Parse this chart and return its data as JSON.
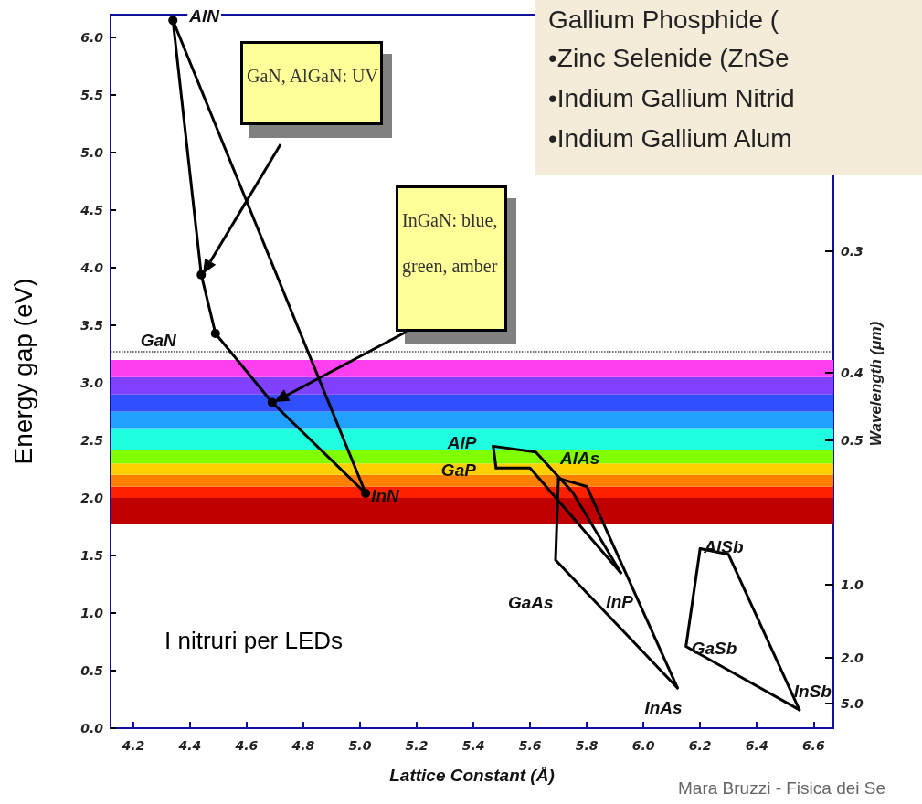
{
  "chart_data": {
    "type": "line",
    "xlabel": "Lattice Constant (Å)",
    "ylabel": "Energy gap (eV)",
    "y2label": "Wavelength (μm)",
    "xlim": [
      4.12,
      6.67
    ],
    "ylim": [
      0,
      6.2
    ],
    "xticks": [
      4.2,
      4.4,
      4.6,
      4.8,
      {
        "value": 5,
        "label": "5.0"
      },
      5.2,
      5.4,
      5.6,
      5.8,
      {
        "value": 6,
        "label": "6.0"
      },
      6.2,
      6.4,
      6.6
    ],
    "yticks": [
      {
        "value": 0,
        "label": "0.0"
      },
      0.5,
      {
        "value": 1,
        "label": "1.0"
      },
      1.5,
      {
        "value": 2,
        "label": "2.0"
      },
      2.5,
      {
        "value": 3,
        "label": "3.0"
      },
      3.5,
      {
        "value": 4,
        "label": "4.0"
      },
      4.5,
      {
        "value": 5,
        "label": "5.0"
      },
      5.5,
      {
        "value": 6,
        "label": "6.0"
      }
    ],
    "series": [
      {
        "color": "#000000",
        "marker": "circle",
        "x": [
          4.34,
          4.44,
          4.49,
          4.69,
          5.02
        ],
        "values": [
          6.15,
          3.94,
          3.43,
          2.83,
          2.04
        ]
      },
      {
        "color": "#000000",
        "marker": "none",
        "x": [
          4.34,
          5.02
        ],
        "values": [
          6.15,
          2.04
        ]
      },
      {
        "color": "#000000",
        "marker": "none",
        "x": [
          5.47,
          5.48
        ],
        "values": [
          2.45,
          2.26
        ]
      },
      {
        "color": "#000000",
        "marker": "none",
        "x": [
          5.47,
          5.62,
          5.75,
          5.92
        ],
        "values": [
          2.45,
          2.4,
          2.05,
          1.35
        ]
      },
      {
        "color": "#000000",
        "marker": "none",
        "x": [
          5.48,
          5.6,
          5.92
        ],
        "values": [
          2.26,
          2.26,
          1.35
        ]
      },
      {
        "color": "#000000",
        "marker": "none",
        "x": [
          5.7,
          5.69,
          6.12
        ],
        "values": [
          2.17,
          1.46,
          0.35
        ]
      },
      {
        "color": "#000000",
        "marker": "none",
        "x": [
          5.7,
          5.8,
          6.12
        ],
        "values": [
          2.17,
          2.1,
          0.35
        ]
      },
      {
        "color": "#000000",
        "marker": "none",
        "x": [
          6.2,
          6.3,
          6.55
        ],
        "values": [
          1.56,
          1.51,
          0.16
        ]
      },
      {
        "color": "#000000",
        "marker": "none",
        "x": [
          6.2,
          6.15,
          6.55
        ],
        "values": [
          1.56,
          0.71,
          0.16
        ]
      }
    ],
    "bands": [
      {
        "axis": "y",
        "from": 1.77,
        "to": 2.0,
        "color": "#c00000"
      },
      {
        "axis": "y",
        "from": 2.0,
        "to": 2.1,
        "color": "#ff2000"
      },
      {
        "axis": "y",
        "from": 2.1,
        "to": 2.2,
        "color": "#ff8000"
      },
      {
        "axis": "y",
        "from": 2.2,
        "to": 2.3,
        "color": "#ffd000"
      },
      {
        "axis": "y",
        "from": 2.3,
        "to": 2.42,
        "color": "#80ff00"
      },
      {
        "axis": "y",
        "from": 2.42,
        "to": 2.6,
        "color": "#20ffe0"
      },
      {
        "axis": "y",
        "from": 2.6,
        "to": 2.75,
        "color": "#20a0ff"
      },
      {
        "axis": "y",
        "from": 2.75,
        "to": 2.9,
        "color": "#3050ff"
      },
      {
        "axis": "y",
        "from": 2.9,
        "to": 3.05,
        "color": "#8040ff"
      },
      {
        "axis": "y",
        "from": 3.05,
        "to": 3.2,
        "color": "#ff40f0"
      }
    ],
    "ref_lines": [
      {
        "axis": "y",
        "value": 3.27,
        "line_style": "dotted",
        "color": "#444444"
      }
    ],
    "annotations": [
      {
        "text": "AlN",
        "x": 4.34,
        "y": 6.15
      },
      {
        "text": "GaN",
        "x": 4.49,
        "y": 3.43
      },
      {
        "text": "InN",
        "x": 5.02,
        "y": 2.04
      },
      {
        "text": "AlP",
        "x": 5.47,
        "y": 2.45
      },
      {
        "text": "GaP",
        "x": 5.48,
        "y": 2.26
      },
      {
        "text": "AlAs",
        "x": 5.7,
        "y": 2.17
      },
      {
        "text": "GaAs",
        "x": 5.69,
        "y": 1.46
      },
      {
        "text": "InP",
        "x": 5.92,
        "y": 1.35
      },
      {
        "text": "InAs",
        "x": 6.12,
        "y": 0.35
      },
      {
        "text": "AlSb",
        "x": 6.2,
        "y": 1.56
      },
      {
        "text": "GaSb",
        "x": 6.15,
        "y": 0.71
      },
      {
        "text": "InSb",
        "x": 6.55,
        "y": 0.16
      },
      "GaN, AlGaN: UV",
      "InGaN: blue, green, amber",
      "I nitruri  per LEDs",
      "Gallium Phosphide (",
      "•Zinc Selenide (ZnSe",
      "•Indium Gallium Nitrid",
      "•Indium Gallium Alum",
      "Mara Bruzzi - Fisica dei Se",
      "0.3",
      "0.4",
      "0.5",
      "1.0",
      "2.0",
      "5.0"
    ]
  }
}
